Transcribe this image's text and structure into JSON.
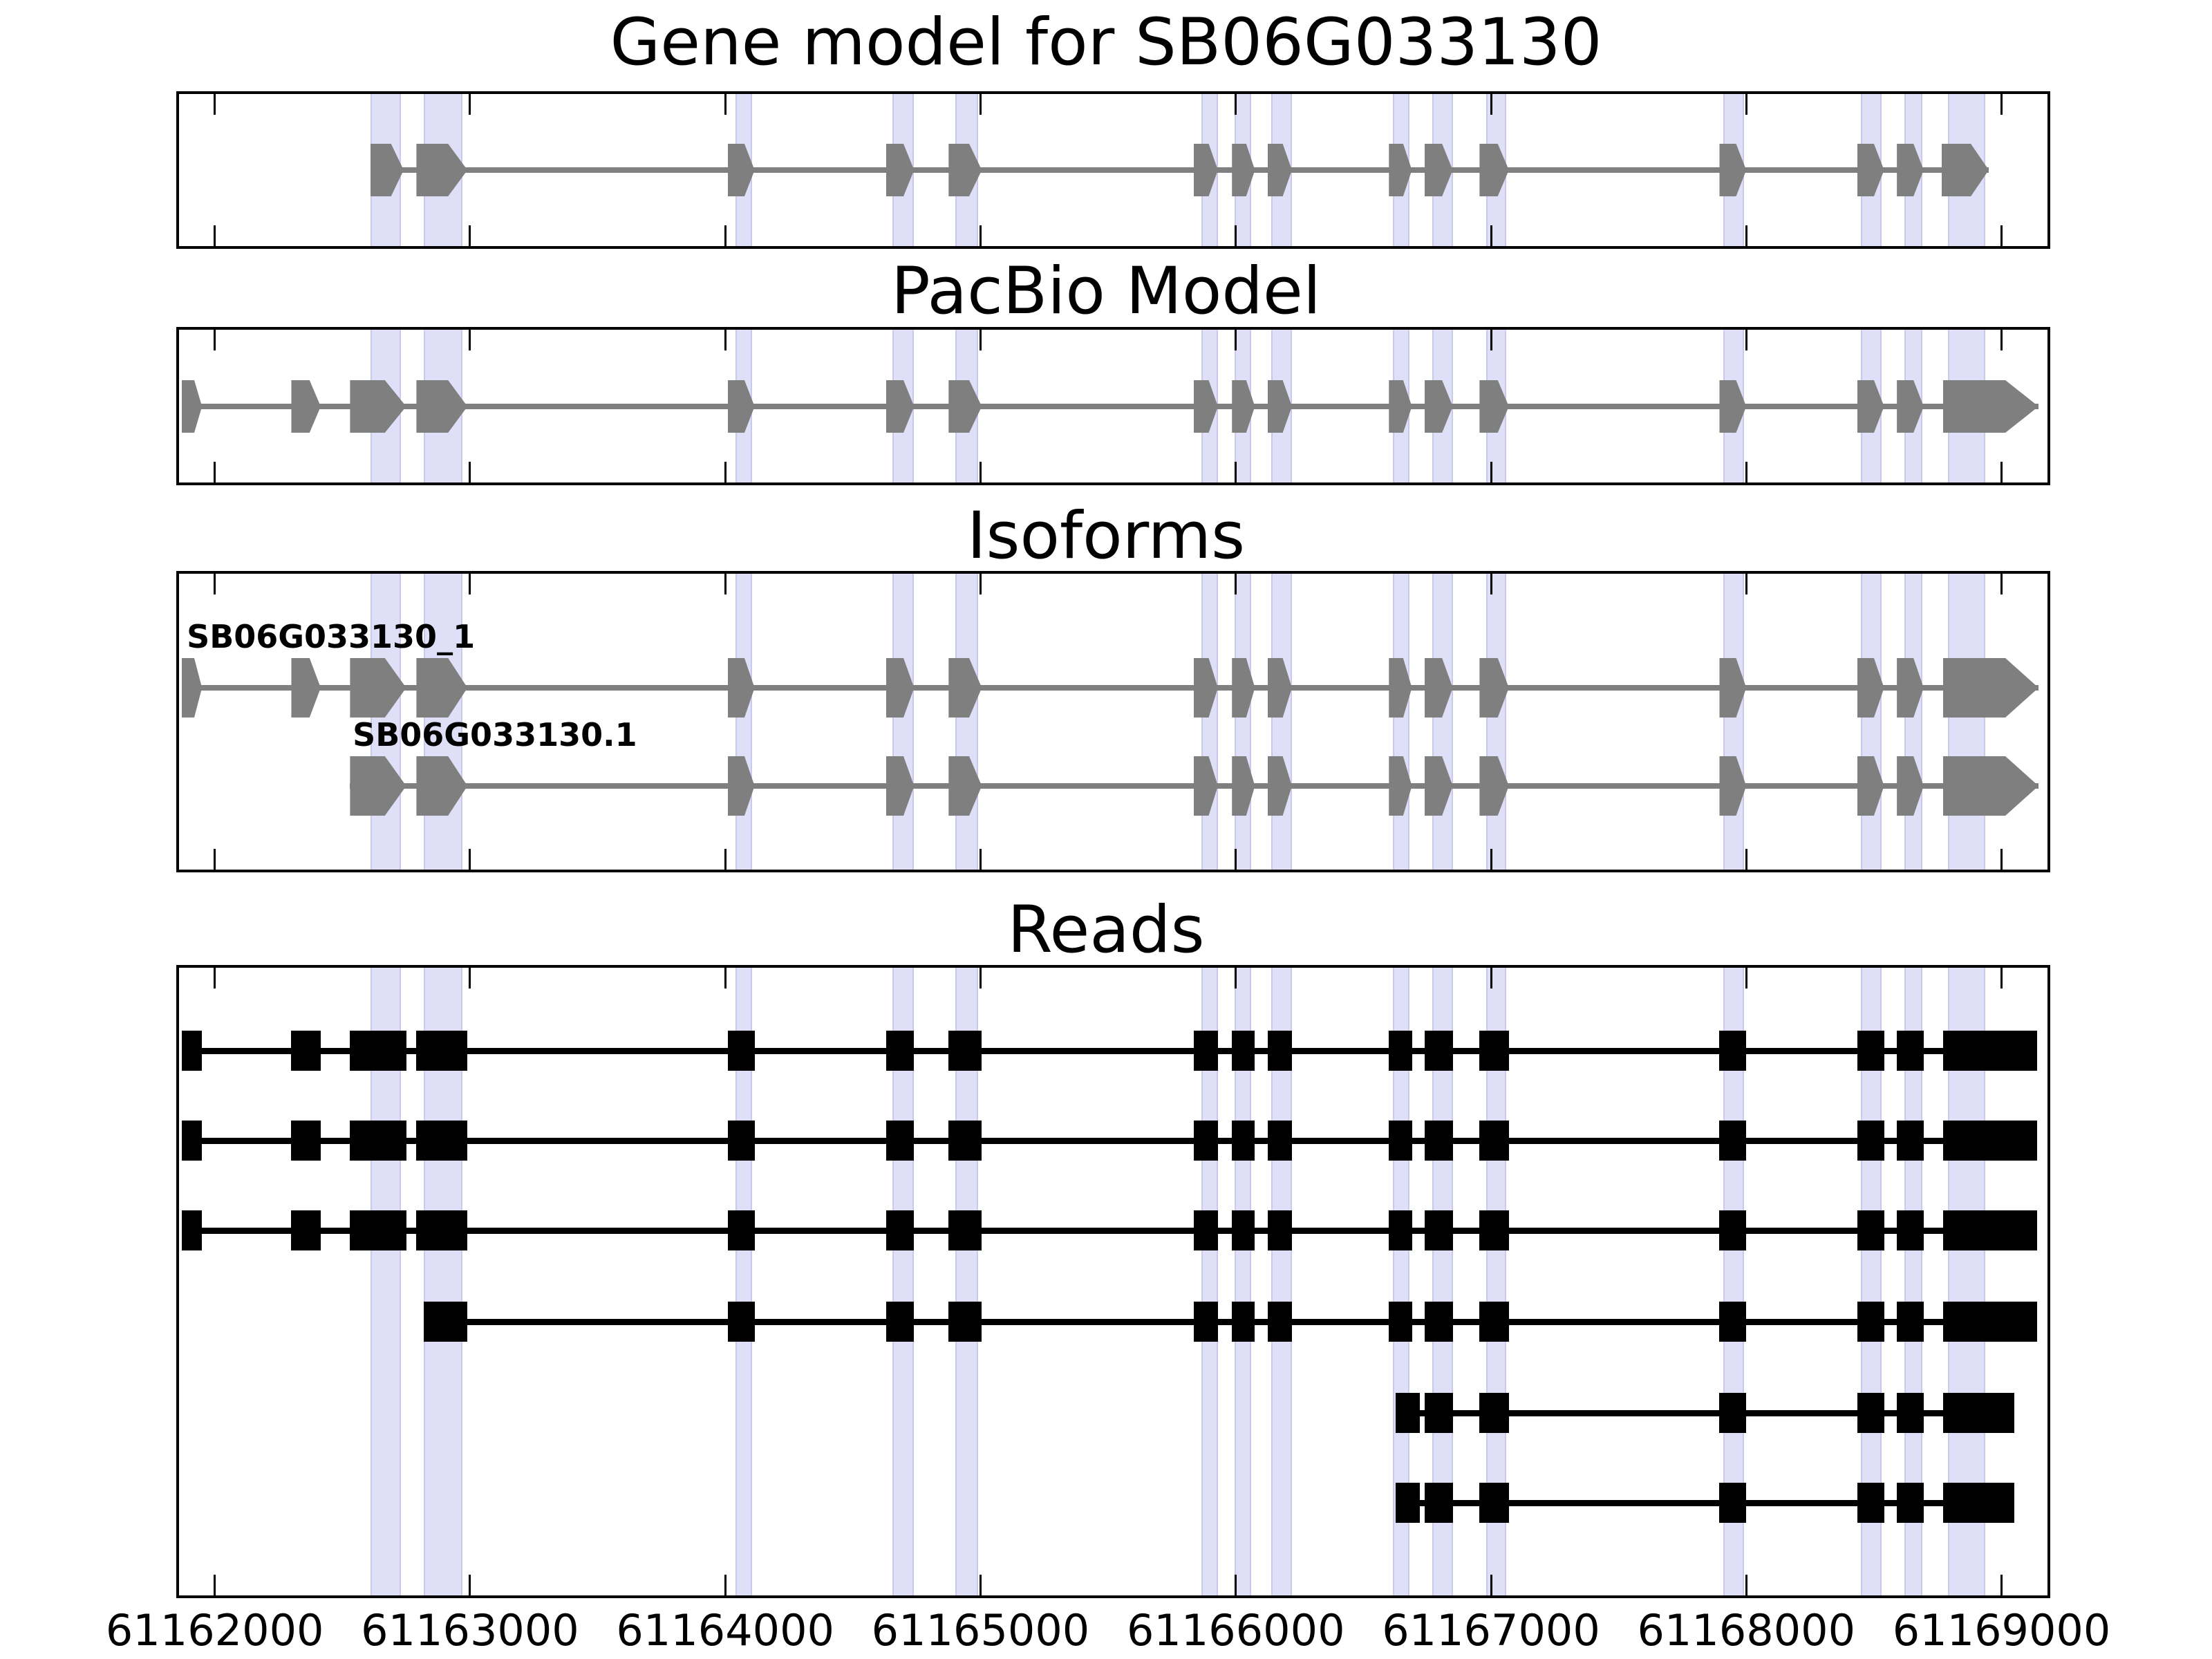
{
  "figure": {
    "background": "#ffffff"
  },
  "colors": {
    "panel_border": "#000000",
    "model_fill": "#7f7f7f",
    "model_line": "#7f7f7f",
    "read_fill": "#000000",
    "read_line": "#000000",
    "highlight_fill": "#dfdff8",
    "highlight_edge": "#c9c9ee",
    "text": "#000000"
  },
  "chart_data": {
    "type": "gene-structure-tracks",
    "gene_id": "SB06G033130",
    "x_axis": {
      "domain": [
        61161860,
        61169180
      ],
      "tick_values": [
        61162000,
        61163000,
        61164000,
        61165000,
        61166000,
        61167000,
        61168000,
        61169000
      ],
      "tick_labels": [
        "61162000",
        "61163000",
        "61164000",
        "61165000",
        "61166000",
        "61167000",
        "61168000",
        "61169000"
      ]
    },
    "highlight_regions": [
      [
        61162610,
        61162730
      ],
      [
        61162820,
        61162970
      ],
      [
        61164040,
        61164105
      ],
      [
        61164655,
        61164740
      ],
      [
        61164900,
        61164990
      ],
      [
        61165865,
        61165930
      ],
      [
        61165995,
        61166060
      ],
      [
        61166140,
        61166220
      ],
      [
        61166615,
        61166680
      ],
      [
        61166770,
        61166850
      ],
      [
        61166980,
        61167060
      ],
      [
        61167910,
        61167990
      ],
      [
        61168450,
        61168530
      ],
      [
        61168620,
        61168690
      ],
      [
        61168790,
        61168935
      ]
    ],
    "panels": [
      {
        "id": "gene-model",
        "title": "Gene model for SB06G033130",
        "tracks": [
          {
            "name": "gene model SB06G033130",
            "label": "",
            "style": "model",
            "line": [
              61162610,
              61168950
            ],
            "exons": [
              [
                61162610,
                61162740
              ],
              [
                61162790,
                61162990
              ],
              [
                61164010,
                61164115
              ],
              [
                61164630,
                61164740
              ],
              [
                61164875,
                61165005
              ],
              [
                61165835,
                61165930
              ],
              [
                61165985,
                61166075
              ],
              [
                61166125,
                61166220
              ],
              [
                61166600,
                61166690
              ],
              [
                61166740,
                61166850
              ],
              [
                61166955,
                61167070
              ],
              [
                61167895,
                61168000
              ],
              [
                61168435,
                61168540
              ],
              [
                61168590,
                61168695
              ],
              [
                61168765,
                61168950
              ]
            ]
          }
        ]
      },
      {
        "id": "pacbio",
        "title": "PacBio Model",
        "tracks": [
          {
            "name": "PacBio model",
            "label": "",
            "style": "model",
            "line": [
              61161870,
              61169145
            ],
            "exons": [
              [
                61161870,
                61161950
              ],
              [
                61162300,
                61162415
              ],
              [
                61162530,
                61162750
              ],
              [
                61162790,
                61162990
              ],
              [
                61164010,
                61164115
              ],
              [
                61164630,
                61164740
              ],
              [
                61164875,
                61165005
              ],
              [
                61165835,
                61165930
              ],
              [
                61165985,
                61166075
              ],
              [
                61166125,
                61166220
              ],
              [
                61166600,
                61166690
              ],
              [
                61166740,
                61166850
              ],
              [
                61166955,
                61167070
              ],
              [
                61167895,
                61168000
              ],
              [
                61168435,
                61168540
              ],
              [
                61168590,
                61168695
              ],
              [
                61168770,
                61169145
              ]
            ]
          }
        ]
      },
      {
        "id": "isoforms",
        "title": "Isoforms",
        "tracks": [
          {
            "name": "isoform SB06G033130_1",
            "label": "SB06G033130_1",
            "label_x": 61161890,
            "style": "model",
            "line": [
              61161870,
              61169145
            ],
            "exons": [
              [
                61161870,
                61161950
              ],
              [
                61162300,
                61162415
              ],
              [
                61162530,
                61162750
              ],
              [
                61162790,
                61162990
              ],
              [
                61164010,
                61164115
              ],
              [
                61164630,
                61164740
              ],
              [
                61164875,
                61165005
              ],
              [
                61165835,
                61165930
              ],
              [
                61165985,
                61166075
              ],
              [
                61166125,
                61166220
              ],
              [
                61166600,
                61166690
              ],
              [
                61166740,
                61166850
              ],
              [
                61166955,
                61167070
              ],
              [
                61167895,
                61168000
              ],
              [
                61168435,
                61168540
              ],
              [
                61168590,
                61168695
              ],
              [
                61168770,
                61169145
              ]
            ]
          },
          {
            "name": "isoform SB06G033130.1",
            "label": "SB06G033130.1",
            "label_x": 61162540,
            "style": "model",
            "line": [
              61162530,
              61169145
            ],
            "exons": [
              [
                61162530,
                61162750
              ],
              [
                61162790,
                61162990
              ],
              [
                61164010,
                61164115
              ],
              [
                61164630,
                61164740
              ],
              [
                61164875,
                61165005
              ],
              [
                61165835,
                61165930
              ],
              [
                61165985,
                61166075
              ],
              [
                61166125,
                61166220
              ],
              [
                61166600,
                61166690
              ],
              [
                61166740,
                61166850
              ],
              [
                61166955,
                61167070
              ],
              [
                61167895,
                61168000
              ],
              [
                61168435,
                61168540
              ],
              [
                61168590,
                61168695
              ],
              [
                61168770,
                61169145
              ]
            ]
          }
        ]
      },
      {
        "id": "reads",
        "title": "Reads",
        "tracks": [
          {
            "name": "read 1",
            "label": "",
            "style": "read",
            "line": [
              61161870,
              61169140
            ],
            "exons": [
              [
                61161870,
                61161950
              ],
              [
                61162300,
                61162415
              ],
              [
                61162530,
                61162750
              ],
              [
                61162790,
                61162990
              ],
              [
                61164010,
                61164115
              ],
              [
                61164630,
                61164740
              ],
              [
                61164875,
                61165005
              ],
              [
                61165835,
                61165930
              ],
              [
                61165985,
                61166075
              ],
              [
                61166125,
                61166220
              ],
              [
                61166600,
                61166690
              ],
              [
                61166740,
                61166850
              ],
              [
                61166955,
                61167070
              ],
              [
                61167895,
                61168000
              ],
              [
                61168435,
                61168540
              ],
              [
                61168590,
                61168695
              ],
              [
                61168770,
                61169140
              ]
            ]
          },
          {
            "name": "read 2",
            "label": "",
            "style": "read",
            "line": [
              61161870,
              61169140
            ],
            "exons": [
              [
                61161870,
                61161950
              ],
              [
                61162300,
                61162415
              ],
              [
                61162530,
                61162750
              ],
              [
                61162790,
                61162990
              ],
              [
                61164010,
                61164115
              ],
              [
                61164630,
                61164740
              ],
              [
                61164875,
                61165005
              ],
              [
                61165835,
                61165930
              ],
              [
                61165985,
                61166075
              ],
              [
                61166125,
                61166220
              ],
              [
                61166600,
                61166690
              ],
              [
                61166740,
                61166850
              ],
              [
                61166955,
                61167070
              ],
              [
                61167895,
                61168000
              ],
              [
                61168435,
                61168540
              ],
              [
                61168590,
                61168695
              ],
              [
                61168770,
                61169140
              ]
            ]
          },
          {
            "name": "read 3",
            "label": "",
            "style": "read",
            "line": [
              61161870,
              61169140
            ],
            "exons": [
              [
                61161870,
                61161950
              ],
              [
                61162300,
                61162415
              ],
              [
                61162530,
                61162750
              ],
              [
                61162790,
                61162990
              ],
              [
                61164010,
                61164115
              ],
              [
                61164630,
                61164740
              ],
              [
                61164875,
                61165005
              ],
              [
                61165835,
                61165930
              ],
              [
                61165985,
                61166075
              ],
              [
                61166125,
                61166220
              ],
              [
                61166600,
                61166690
              ],
              [
                61166740,
                61166850
              ],
              [
                61166955,
                61167070
              ],
              [
                61167895,
                61168000
              ],
              [
                61168435,
                61168540
              ],
              [
                61168590,
                61168695
              ],
              [
                61168770,
                61169140
              ]
            ]
          },
          {
            "name": "read 4",
            "label": "",
            "style": "read",
            "line": [
              61162820,
              61169140
            ],
            "exons": [
              [
                61162820,
                61162990
              ],
              [
                61164010,
                61164115
              ],
              [
                61164630,
                61164740
              ],
              [
                61164875,
                61165005
              ],
              [
                61165835,
                61165930
              ],
              [
                61165985,
                61166075
              ],
              [
                61166125,
                61166220
              ],
              [
                61166600,
                61166690
              ],
              [
                61166740,
                61166850
              ],
              [
                61166955,
                61167070
              ],
              [
                61167895,
                61168000
              ],
              [
                61168435,
                61168540
              ],
              [
                61168590,
                61168695
              ],
              [
                61168770,
                61169140
              ]
            ]
          },
          {
            "name": "read 5",
            "label": "",
            "style": "read",
            "line": [
              61166625,
              61169050
            ],
            "exons": [
              [
                61166625,
                61166720
              ],
              [
                61166740,
                61166850
              ],
              [
                61166955,
                61167070
              ],
              [
                61167895,
                61168000
              ],
              [
                61168435,
                61168540
              ],
              [
                61168590,
                61168695
              ],
              [
                61168770,
                61169050
              ]
            ]
          },
          {
            "name": "read 6",
            "label": "",
            "style": "read",
            "line": [
              61166625,
              61169050
            ],
            "exons": [
              [
                61166625,
                61166720
              ],
              [
                61166740,
                61166850
              ],
              [
                61166955,
                61167070
              ],
              [
                61167895,
                61168000
              ],
              [
                61168435,
                61168540
              ],
              [
                61168590,
                61168695
              ],
              [
                61168770,
                61169050
              ]
            ]
          }
        ]
      }
    ]
  }
}
